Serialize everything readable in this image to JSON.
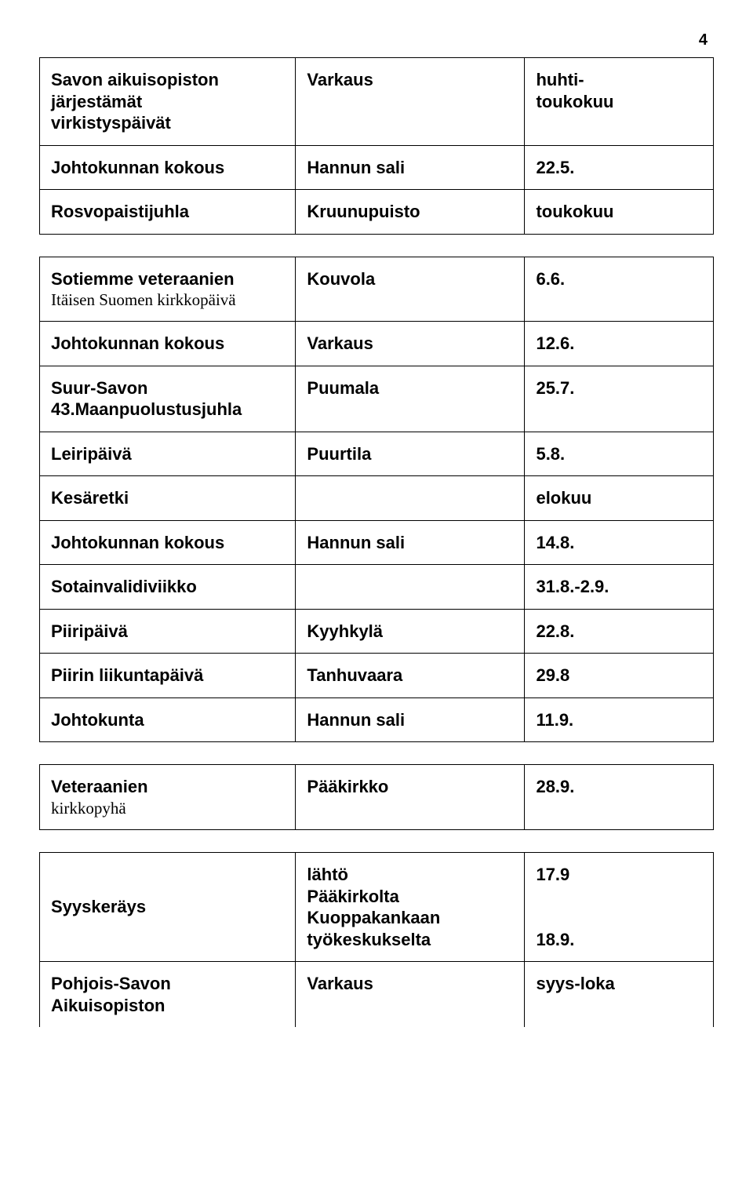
{
  "page_number": "4",
  "table1": {
    "rows": [
      {
        "c1a": "Savon aikuisopiston",
        "c1b": "järjestämät",
        "c1c": "virkistyspäivät",
        "c2": "Varkaus",
        "c3a": "huhti-",
        "c3b": "toukokuu"
      },
      {
        "c1": "Johtokunnan kokous",
        "c2": "Hannun sali",
        "c3": "22.5."
      },
      {
        "c1": "Rosvopaistijuhla",
        "c2": "Kruunupuisto",
        "c3": "toukokuu"
      }
    ]
  },
  "table2": {
    "rows": [
      {
        "c1a": "Sotiemme veteraanien",
        "c1b_sub": "Itäisen Suomen kirkkopäivä",
        "c2": "Kouvola",
        "c3": "6.6."
      },
      {
        "c1": "Johtokunnan kokous",
        "c2": "Varkaus",
        "c3": "12.6."
      },
      {
        "c1a": "Suur-Savon",
        "c1b": "43.Maanpuolustusjuhla",
        "c2": "Puumala",
        "c3": "25.7."
      },
      {
        "c1": "Leiripäivä",
        "c2": "Puurtila",
        "c3": "5.8."
      },
      {
        "c1": "Kesäretki",
        "c2": "",
        "c3": "elokuu"
      },
      {
        "c1": "Johtokunnan kokous",
        "c2": "Hannun sali",
        "c3": "14.8."
      },
      {
        "c1": "Sotainvalidiviikko",
        "c2": "",
        "c3": "31.8.-2.9."
      },
      {
        "c1": "Piiripäivä",
        "c2": "Kyyhkylä",
        "c3": "22.8."
      },
      {
        "c1": "Piirin liikuntapäivä",
        "c2": "Tanhuvaara",
        "c3": "29.8"
      },
      {
        "c1": "Johtokunta",
        "c2": "Hannun sali",
        "c3": "11.9."
      }
    ]
  },
  "table3": {
    "rows": [
      {
        "c1a": "Veteraanien",
        "c1b_sub": "kirkkopyhä",
        "c2": "Pääkirkko",
        "c3": "28.9."
      }
    ]
  },
  "table4": {
    "rows": [
      {
        "c1": "Syyskeräys",
        "c2a": "lähtö",
        "c2b": "Pääkirkolta",
        "c2c": "Kuoppakankaan",
        "c2d": "työkeskukselta",
        "c3a": "17.9",
        "c3b": "18.9."
      },
      {
        "c1a": "Pohjois-Savon",
        "c1b": "Aikuisopiston",
        "c2": "Varkaus",
        "c3": "syys-loka"
      }
    ]
  }
}
